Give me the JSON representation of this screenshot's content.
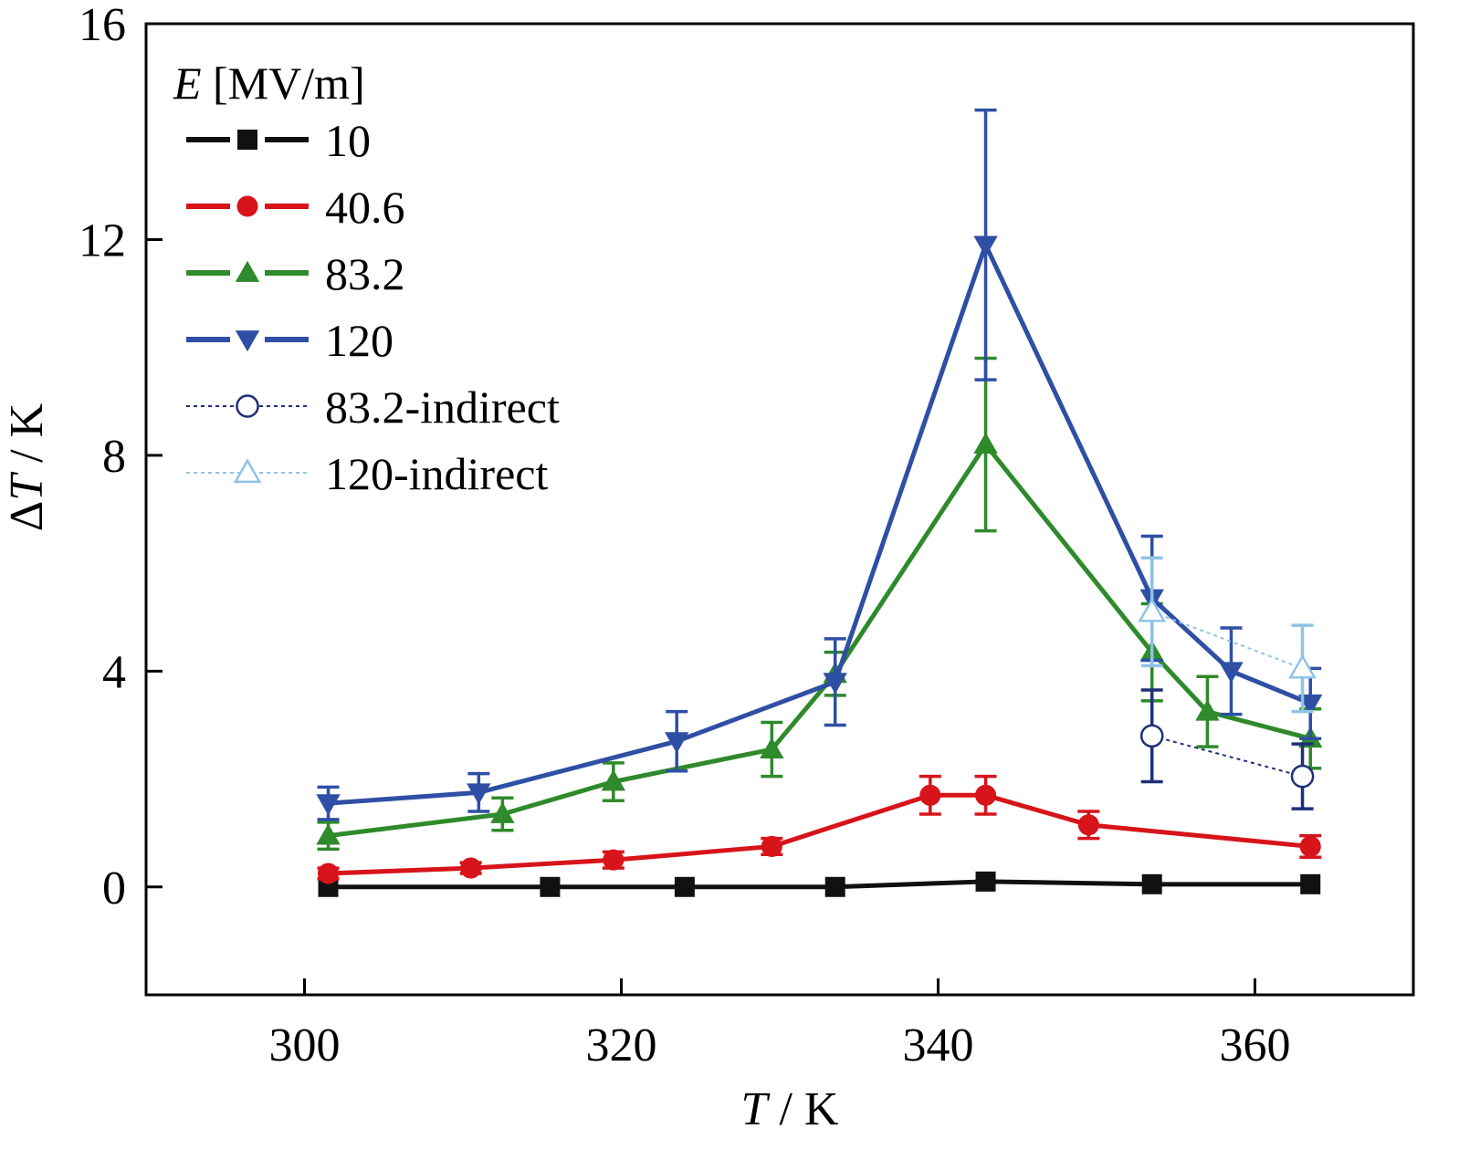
{
  "chart_data": {
    "type": "line",
    "xlabel": {
      "var": "T",
      "unit": " / K"
    },
    "ylabel": {
      "prefix": "Δ",
      "var": "T",
      "unit": " / K"
    },
    "xlim": [
      290,
      370
    ],
    "ylim": [
      -2,
      16
    ],
    "x_ticks": [
      300,
      320,
      340,
      360
    ],
    "y_ticks": [
      0,
      4,
      8,
      12,
      16
    ],
    "grid": false,
    "legend": {
      "placement": "top-left",
      "title_var": "E",
      "title_unit": " [MV/m]"
    },
    "series": [
      {
        "name": "10",
        "color": "#111111",
        "marker": "square",
        "style": "solid",
        "points": [
          {
            "x": 301.5,
            "y": 0.0
          },
          {
            "x": 315.5,
            "y": 0.0
          },
          {
            "x": 324,
            "y": 0.0
          },
          {
            "x": 333.5,
            "y": 0.0
          },
          {
            "x": 343,
            "y": 0.1
          },
          {
            "x": 353.5,
            "y": 0.05
          },
          {
            "x": 363.5,
            "y": 0.05
          }
        ]
      },
      {
        "name": "40.6",
        "color": "#d7141a",
        "marker": "circle",
        "style": "solid",
        "points": [
          {
            "x": 301.5,
            "y": 0.25,
            "err": 0.1
          },
          {
            "x": 310.5,
            "y": 0.35,
            "err": 0.1
          },
          {
            "x": 319.5,
            "y": 0.5,
            "err": 0.15
          },
          {
            "x": 329.5,
            "y": 0.75,
            "err": 0.15
          },
          {
            "x": 339.5,
            "y": 1.7,
            "err": 0.35
          },
          {
            "x": 343,
            "y": 1.7,
            "err": 0.35
          },
          {
            "x": 349.5,
            "y": 1.15,
            "err": 0.25
          },
          {
            "x": 363.5,
            "y": 0.75,
            "err": 0.2
          }
        ]
      },
      {
        "name": "83.2",
        "color": "#2e8a2a",
        "marker": "triangle-up",
        "style": "solid",
        "points": [
          {
            "x": 301.5,
            "y": 0.95,
            "err": 0.25
          },
          {
            "x": 312.5,
            "y": 1.35,
            "err": 0.3
          },
          {
            "x": 319.5,
            "y": 1.95,
            "err": 0.35
          },
          {
            "x": 329.5,
            "y": 2.55,
            "err": 0.5
          },
          {
            "x": 333.5,
            "y": 3.95,
            "err": 0.4
          },
          {
            "x": 343,
            "y": 8.2,
            "err": 1.6
          },
          {
            "x": 353.5,
            "y": 4.35,
            "err": 0.9
          },
          {
            "x": 357,
            "y": 3.25,
            "err": 0.65
          },
          {
            "x": 363.5,
            "y": 2.75,
            "err": 0.55
          }
        ]
      },
      {
        "name": "120",
        "color": "#2f4fa5",
        "marker": "triangle-down",
        "style": "solid",
        "points": [
          {
            "x": 301.5,
            "y": 1.55,
            "err": 0.3
          },
          {
            "x": 311,
            "y": 1.75,
            "err": 0.35
          },
          {
            "x": 323.5,
            "y": 2.7,
            "err": 0.55
          },
          {
            "x": 333.5,
            "y": 3.8,
            "err": 0.8
          },
          {
            "x": 343,
            "y": 11.9,
            "err": 2.5
          },
          {
            "x": 353.5,
            "y": 5.35,
            "err": 1.15
          },
          {
            "x": 358.5,
            "y": 4.0,
            "err": 0.8
          },
          {
            "x": 363.5,
            "y": 3.4,
            "err": 0.65
          }
        ]
      },
      {
        "name": "83.2-indirect",
        "color": "#1f2f7a",
        "marker": "circle-open",
        "style": "dotted",
        "points": [
          {
            "x": 353.5,
            "y": 2.8,
            "err": 0.85
          },
          {
            "x": 363,
            "y": 2.05,
            "err": 0.6
          }
        ]
      },
      {
        "name": "120-indirect",
        "color": "#8fc3e6",
        "marker": "triangle-up-open",
        "style": "dotted",
        "points": [
          {
            "x": 353.5,
            "y": 5.1,
            "err": 1.0
          },
          {
            "x": 363,
            "y": 4.05,
            "err": 0.8
          }
        ]
      }
    ]
  }
}
